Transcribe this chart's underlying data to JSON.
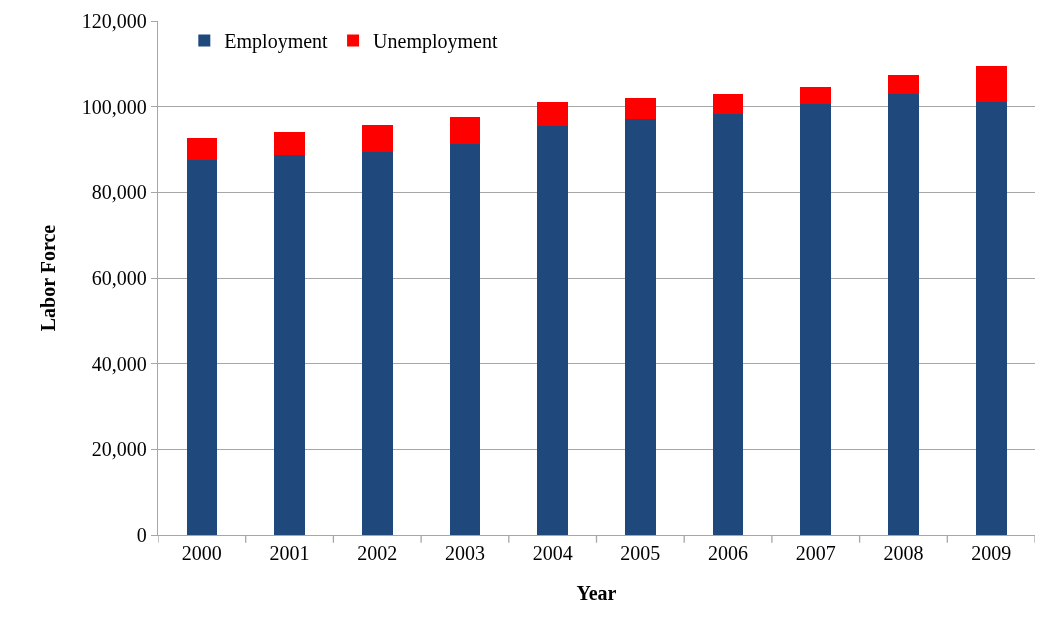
{
  "chart_data": {
    "type": "bar",
    "stacked": true,
    "xlabel": "Year",
    "ylabel": "Labor Force",
    "categories": [
      "2000",
      "2001",
      "2002",
      "2003",
      "2004",
      "2005",
      "2006",
      "2007",
      "2008",
      "2009"
    ],
    "series": [
      {
        "name": "Employment",
        "color": "#1f497d",
        "values": [
          87600,
          88800,
          89400,
          91200,
          95500,
          97200,
          98400,
          100700,
          103000,
          101200
        ]
      },
      {
        "name": "Unemployment",
        "color": "#ff0000",
        "values": [
          5000,
          5200,
          6400,
          6500,
          5700,
          4900,
          4600,
          4000,
          4400,
          8200
        ]
      }
    ],
    "ylim": [
      0,
      120000
    ],
    "yticks": [
      {
        "value": 0,
        "label": "0"
      },
      {
        "value": 20000,
        "label": "20,000"
      },
      {
        "value": 40000,
        "label": "40,000"
      },
      {
        "value": 60000,
        "label": "60,000"
      },
      {
        "value": 80000,
        "label": "80,000"
      },
      {
        "value": 100000,
        "label": "100,000"
      },
      {
        "value": 120000,
        "label": "120,000"
      }
    ],
    "grid": "y",
    "legend": "top left"
  }
}
